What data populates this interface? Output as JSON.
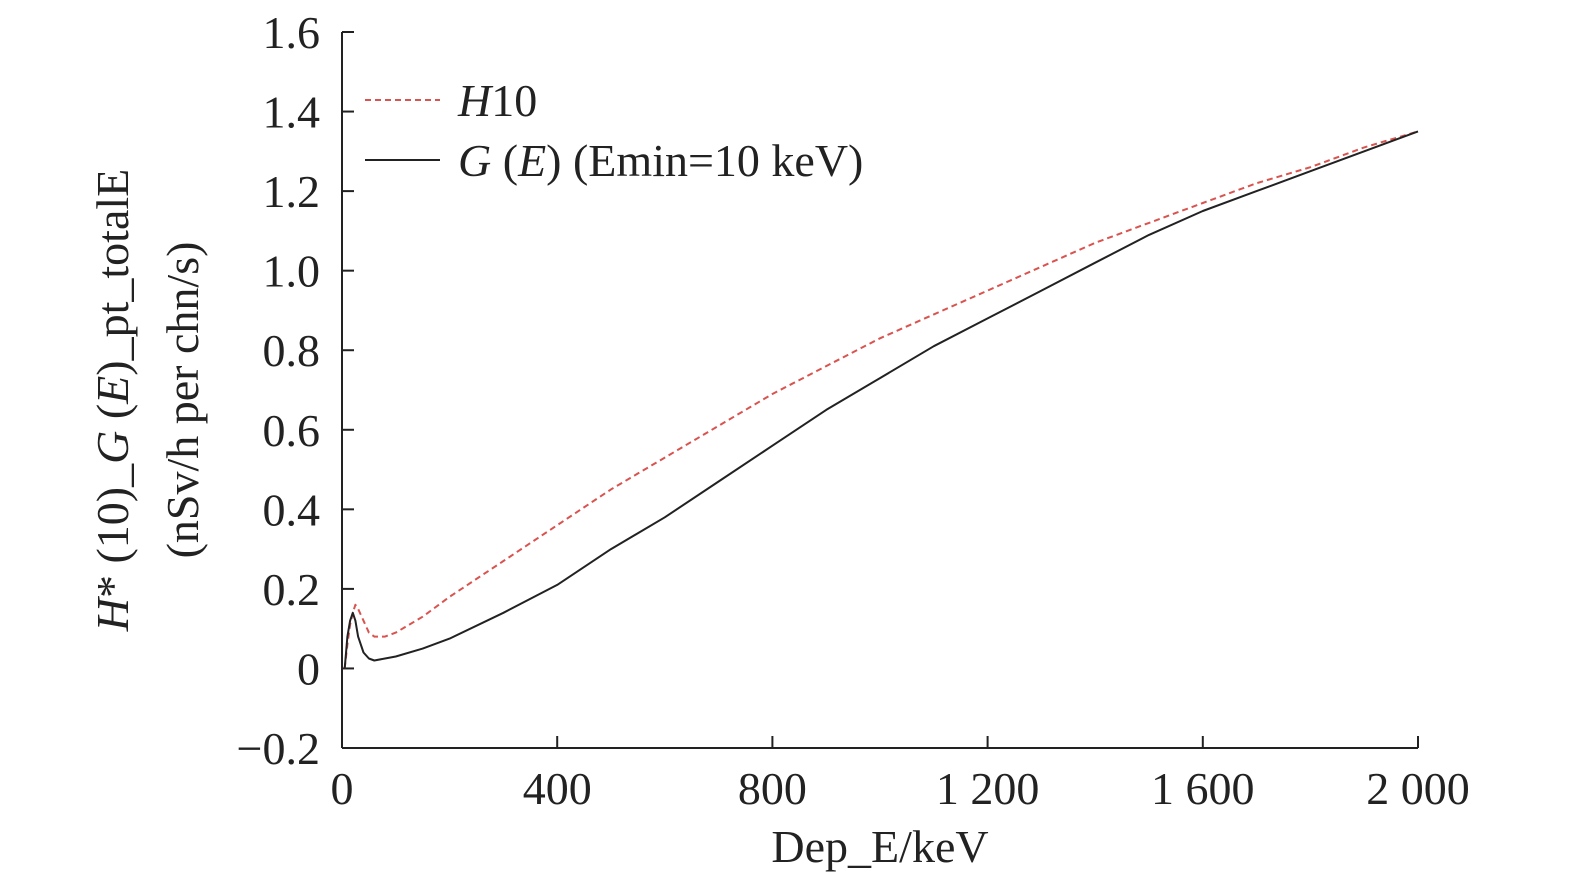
{
  "chart_data": {
    "type": "line",
    "xlabel": "Dep_E/keV",
    "ylabel": {
      "line1_parts": [
        {
          "text": "H",
          "italic": true
        },
        {
          "text": "* (10)_",
          "italic": false
        },
        {
          "text": "G",
          "italic": true
        },
        {
          "text": " (",
          "italic": false
        },
        {
          "text": "E",
          "italic": true
        },
        {
          "text": ")_pt_totalE",
          "italic": false
        }
      ],
      "line2": "(nSv/h per chn/s)"
    },
    "xlim": [
      0,
      2000
    ],
    "ylim": [
      -0.2,
      1.6
    ],
    "xticks": [
      0,
      400,
      800,
      1200,
      1600,
      2000
    ],
    "xtick_labels": [
      "0",
      "400",
      "800",
      "1 200",
      "1 600",
      "2 000"
    ],
    "yticks": [
      -0.2,
      0,
      0.2,
      0.4,
      0.6,
      0.8,
      1.0,
      1.2,
      1.4,
      1.6
    ],
    "ytick_labels": [
      "−0.2",
      "0",
      "0.2",
      "0.4",
      "0.6",
      "0.8",
      "1.0",
      "1.2",
      "1.4",
      "1.6"
    ],
    "grid": false,
    "legend_position": "top-left",
    "series": [
      {
        "name_parts": [
          {
            "text": "H",
            "italic": true
          },
          {
            "text": "10",
            "italic": false
          }
        ],
        "color": "#d9534f",
        "style": "dashed",
        "x": [
          5,
          10,
          15,
          20,
          25,
          30,
          40,
          50,
          60,
          80,
          100,
          150,
          200,
          300,
          400,
          500,
          600,
          700,
          800,
          900,
          1000,
          1100,
          1200,
          1300,
          1400,
          1500,
          1600,
          1700,
          1800,
          1900,
          2000
        ],
        "y": [
          0.0,
          0.06,
          0.11,
          0.14,
          0.16,
          0.15,
          0.12,
          0.09,
          0.08,
          0.08,
          0.09,
          0.13,
          0.18,
          0.27,
          0.36,
          0.45,
          0.53,
          0.61,
          0.69,
          0.76,
          0.83,
          0.89,
          0.95,
          1.01,
          1.07,
          1.12,
          1.17,
          1.22,
          1.26,
          1.31,
          1.35
        ]
      },
      {
        "name_parts": [
          {
            "text": "G",
            "italic": true
          },
          {
            "text": " (",
            "italic": false
          },
          {
            "text": "E",
            "italic": true
          },
          {
            "text": ") (Emin=10 keV)",
            "italic": false
          }
        ],
        "color": "#222222",
        "style": "solid",
        "x": [
          5,
          10,
          15,
          20,
          25,
          30,
          40,
          50,
          60,
          80,
          100,
          150,
          200,
          300,
          400,
          500,
          600,
          700,
          800,
          900,
          1000,
          1100,
          1200,
          1300,
          1400,
          1500,
          1600,
          1700,
          1800,
          1900,
          2000
        ],
        "y": [
          0.0,
          0.08,
          0.12,
          0.14,
          0.12,
          0.08,
          0.04,
          0.025,
          0.02,
          0.025,
          0.03,
          0.05,
          0.075,
          0.14,
          0.21,
          0.3,
          0.38,
          0.47,
          0.56,
          0.65,
          0.73,
          0.81,
          0.88,
          0.95,
          1.02,
          1.09,
          1.15,
          1.2,
          1.25,
          1.3,
          1.35
        ]
      }
    ]
  }
}
